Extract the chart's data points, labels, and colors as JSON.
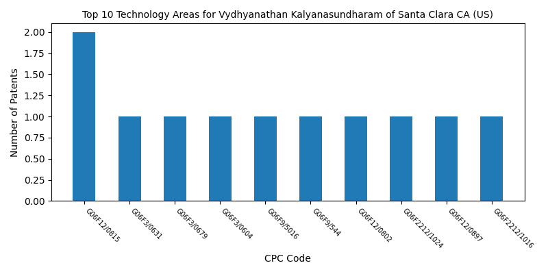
{
  "title": "Top 10 Technology Areas for Vydhyanathan Kalyanasundharam of Santa Clara CA (US)",
  "xlabel": "CPC Code",
  "ylabel": "Number of Patents",
  "categories": [
    "G06F12/0815",
    "G06F3/0631",
    "G06F3/0679",
    "G06F3/0604",
    "G06F9/5016",
    "G06F9/544",
    "G06F12/0802",
    "G06F2212/1024",
    "G06F12/0897",
    "G06F2212/1016"
  ],
  "values": [
    2,
    1,
    1,
    1,
    1,
    1,
    1,
    1,
    1,
    1
  ],
  "bar_color": "#1f7ab5",
  "bar_width": 0.5,
  "ylim": [
    0,
    2.1
  ],
  "figsize": [
    8.0,
    4.0
  ],
  "dpi": 100,
  "title_fontsize": 10,
  "axis_label_fontsize": 10,
  "tick_fontsize": 7,
  "tick_rotation": -45
}
